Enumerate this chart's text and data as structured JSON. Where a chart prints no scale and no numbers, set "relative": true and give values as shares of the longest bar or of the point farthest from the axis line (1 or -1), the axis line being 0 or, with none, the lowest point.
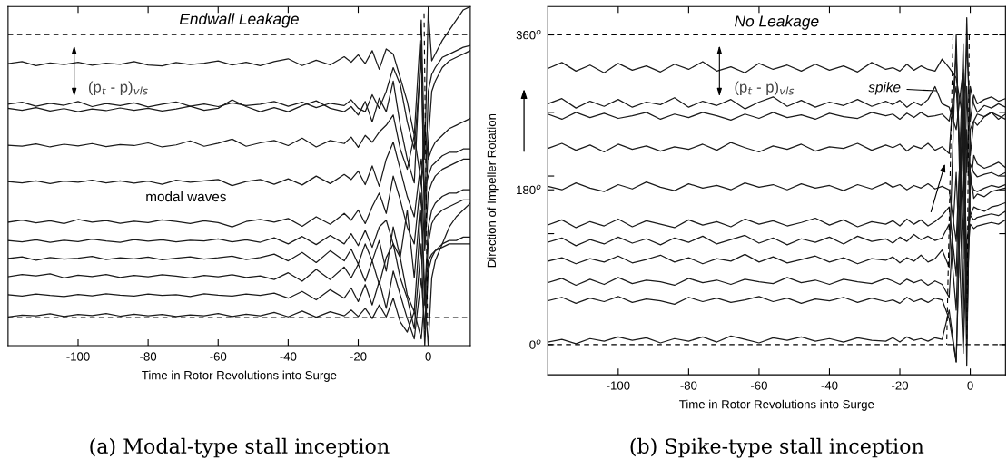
{
  "chart_data": [
    {
      "type": "line",
      "title": "Endwall Leakage",
      "xlabel": "Time in Rotor Revolutions into Surge",
      "relative": true,
      "tick_labels": "x",
      "line_style": "solid",
      "x": [
        -120,
        -116,
        -112,
        -108,
        -104,
        -100,
        -96,
        -92,
        -88,
        -84,
        -80,
        -76,
        -72,
        -68,
        -64,
        -60,
        -56,
        -52,
        -48,
        -44,
        -40,
        -36,
        -32,
        -28,
        -24,
        -22,
        -20,
        -18,
        -16,
        -14,
        -12,
        -10,
        -8,
        -6,
        -4,
        -2,
        -1,
        0,
        1,
        2,
        4,
        6,
        8,
        10,
        12
      ],
      "xlim": [
        -120,
        12
      ],
      "xticks": [
        -100,
        -80,
        -60,
        -40,
        -20,
        0
      ],
      "ref_lines": [
        {
          "axis": "y",
          "value": 0.917,
          "color": "#000000",
          "line_style": "dashed"
        },
        {
          "axis": "y",
          "value": 0.083,
          "color": "#000000",
          "line_style": "dashed"
        }
      ],
      "annotations": [
        "(p$_{t}$ - p)$_{vls}$",
        "modal waves",
        "(a) Modal-type stall inception"
      ],
      "series": [
        {
          "color": "#1a1a1a",
          "values": [
            0.832,
            0.838,
            0.826,
            0.834,
            0.829,
            0.836,
            0.827,
            0.833,
            0.83,
            0.838,
            0.828,
            0.825,
            0.835,
            0.829,
            0.833,
            0.84,
            0.828,
            0.836,
            0.826,
            0.838,
            0.846,
            0.826,
            0.842,
            0.828,
            0.852,
            0.836,
            0.858,
            0.832,
            0.87,
            0.815,
            0.875,
            0.86,
            0.79,
            0.72,
            0.62,
            0.96,
            0.55,
            0.99,
            0.84,
            0.86,
            0.9,
            0.93,
            0.96,
            0.99,
            1.0
          ]
        },
        {
          "color": "#1a1a1a",
          "values": [
            0.712,
            0.718,
            0.706,
            0.715,
            0.709,
            0.72,
            0.705,
            0.714,
            0.708,
            0.716,
            0.704,
            0.712,
            0.719,
            0.706,
            0.713,
            0.705,
            0.716,
            0.708,
            0.712,
            0.72,
            0.706,
            0.718,
            0.702,
            0.715,
            0.708,
            0.725,
            0.7,
            0.69,
            0.74,
            0.7,
            0.75,
            0.82,
            0.77,
            0.66,
            0.58,
            0.85,
            0.4,
            0.75,
            0.8,
            0.82,
            0.85,
            0.86,
            0.87,
            0.88,
            0.885
          ]
        },
        {
          "color": "#1a1a1a",
          "values": [
            0.7,
            0.694,
            0.702,
            0.692,
            0.699,
            0.69,
            0.698,
            0.693,
            0.701,
            0.694,
            0.7,
            0.692,
            0.698,
            0.706,
            0.694,
            0.7,
            0.725,
            0.705,
            0.69,
            0.702,
            0.69,
            0.708,
            0.722,
            0.7,
            0.69,
            0.705,
            0.68,
            0.72,
            0.66,
            0.73,
            0.69,
            0.78,
            0.65,
            0.55,
            0.48,
            0.9,
            0.3,
            0.6,
            0.75,
            0.78,
            0.82,
            0.84,
            0.85,
            0.86,
            0.87
          ]
        },
        {
          "color": "#1a1a1a",
          "values": [
            0.591,
            0.588,
            0.595,
            0.586,
            0.594,
            0.589,
            0.596,
            0.587,
            0.593,
            0.59,
            0.598,
            0.586,
            0.592,
            0.604,
            0.588,
            0.597,
            0.609,
            0.588,
            0.598,
            0.605,
            0.59,
            0.612,
            0.586,
            0.605,
            0.596,
            0.615,
            0.585,
            0.62,
            0.6,
            0.63,
            0.65,
            0.68,
            0.58,
            0.52,
            0.62,
            0.48,
            0.65,
            0.55,
            0.58,
            0.6,
            0.62,
            0.64,
            0.65,
            0.66,
            0.67
          ]
        },
        {
          "color": "#1a1a1a",
          "values": [
            0.484,
            0.48,
            0.486,
            0.478,
            0.485,
            0.482,
            0.488,
            0.48,
            0.486,
            0.479,
            0.485,
            0.476,
            0.488,
            0.482,
            0.486,
            0.49,
            0.472,
            0.484,
            0.49,
            0.476,
            0.492,
            0.474,
            0.5,
            0.478,
            0.505,
            0.49,
            0.515,
            0.475,
            0.53,
            0.47,
            0.55,
            0.6,
            0.52,
            0.44,
            0.38,
            0.55,
            0.46,
            0.5,
            0.53,
            0.54,
            0.56,
            0.57,
            0.57,
            0.58,
            0.58
          ]
        },
        {
          "color": "#1a1a1a",
          "values": [
            0.364,
            0.37,
            0.362,
            0.368,
            0.36,
            0.372,
            0.364,
            0.369,
            0.361,
            0.367,
            0.363,
            0.371,
            0.366,
            0.36,
            0.368,
            0.363,
            0.35,
            0.366,
            0.372,
            0.364,
            0.375,
            0.352,
            0.38,
            0.358,
            0.39,
            0.37,
            0.4,
            0.36,
            0.41,
            0.45,
            0.39,
            0.5,
            0.43,
            0.35,
            0.3,
            0.5,
            0.28,
            0.45,
            0.48,
            0.5,
            0.52,
            0.53,
            0.54,
            0.55,
            0.55
          ]
        },
        {
          "color": "#1a1a1a",
          "values": [
            0.31,
            0.306,
            0.312,
            0.305,
            0.311,
            0.307,
            0.314,
            0.309,
            0.305,
            0.313,
            0.308,
            0.312,
            0.306,
            0.311,
            0.309,
            0.315,
            0.306,
            0.312,
            0.305,
            0.318,
            0.3,
            0.322,
            0.298,
            0.325,
            0.3,
            0.33,
            0.295,
            0.34,
            0.29,
            0.35,
            0.37,
            0.3,
            0.26,
            0.4,
            0.2,
            0.45,
            0.15,
            0.35,
            0.4,
            0.42,
            0.44,
            0.45,
            0.45,
            0.46,
            0.46
          ]
        },
        {
          "color": "#1a1a1a",
          "values": [
            0.257,
            0.262,
            0.252,
            0.26,
            0.255,
            0.258,
            0.263,
            0.254,
            0.259,
            0.256,
            0.261,
            0.253,
            0.258,
            0.262,
            0.255,
            0.259,
            0.264,
            0.254,
            0.26,
            0.27,
            0.25,
            0.275,
            0.245,
            0.28,
            0.25,
            0.285,
            0.24,
            0.3,
            0.25,
            0.31,
            0.22,
            0.35,
            0.26,
            0.15,
            0.1,
            0.4,
            0.12,
            0.3,
            0.36,
            0.38,
            0.4,
            0.41,
            0.42,
            0.43,
            0.43
          ]
        },
        {
          "color": "#1a1a1a",
          "values": [
            0.203,
            0.21,
            0.206,
            0.212,
            0.2,
            0.208,
            0.204,
            0.21,
            0.201,
            0.207,
            0.203,
            0.209,
            0.205,
            0.2,
            0.207,
            0.203,
            0.209,
            0.201,
            0.206,
            0.195,
            0.215,
            0.19,
            0.225,
            0.195,
            0.232,
            0.2,
            0.24,
            0.19,
            0.25,
            0.18,
            0.26,
            0.3,
            0.2,
            0.14,
            0.05,
            0.3,
            0.0,
            0.22,
            0.26,
            0.28,
            0.3,
            0.31,
            0.31,
            0.32,
            0.32
          ]
        },
        {
          "color": "#1a1a1a",
          "values": [
            0.15,
            0.146,
            0.152,
            0.148,
            0.145,
            0.151,
            0.147,
            0.153,
            0.149,
            0.146,
            0.152,
            0.148,
            0.15,
            0.145,
            0.153,
            0.149,
            0.146,
            0.152,
            0.148,
            0.155,
            0.14,
            0.16,
            0.135,
            0.165,
            0.14,
            0.17,
            0.13,
            0.18,
            0.12,
            0.19,
            0.11,
            0.22,
            0.15,
            0.08,
            0.02,
            0.2,
            0.05,
            0.25,
            0.27,
            0.28,
            0.29,
            0.3,
            0.3,
            0.3,
            0.3
          ]
        },
        {
          "color": "#1a1a1a",
          "values": [
            0.085,
            0.09,
            0.088,
            0.094,
            0.086,
            0.092,
            0.089,
            0.095,
            0.087,
            0.093,
            0.088,
            0.092,
            0.086,
            0.091,
            0.088,
            0.095,
            0.086,
            0.093,
            0.088,
            0.098,
            0.085,
            0.102,
            0.084,
            0.1,
            0.088,
            0.105,
            0.086,
            0.11,
            0.08,
            0.12,
            0.085,
            0.14,
            0.07,
            0.04,
            0.1,
            0.02,
            0.15,
            0.0,
            0.2,
            0.25,
            0.3,
            0.35,
            0.38,
            0.4,
            0.42
          ]
        },
        {
          "color": "#000000",
          "line_style": "dashed",
          "x": [
            -1.2,
            -0.2
          ],
          "values": [
            0.98,
            0.06
          ]
        }
      ]
    },
    {
      "type": "line",
      "title": "No Leakage",
      "xlabel": "Time in Rotor Revolutions into Surge",
      "ylabel": "Direction of Impeller Rotation",
      "line_style": "solid",
      "x": [
        -120,
        -116,
        -112,
        -108,
        -104,
        -100,
        -96,
        -92,
        -88,
        -84,
        -80,
        -76,
        -72,
        -68,
        -64,
        -60,
        -56,
        -52,
        -48,
        -44,
        -40,
        -36,
        -32,
        -28,
        -24,
        -22,
        -20,
        -18,
        -16,
        -14,
        -12,
        -10,
        -8,
        -6,
        -4,
        -2,
        -1,
        0,
        1,
        2,
        4,
        6,
        8,
        10
      ],
      "xlim": [
        -120,
        10
      ],
      "xticks": [
        -100,
        -80,
        -60,
        -40,
        -20,
        0
      ],
      "ylim": [
        -35,
        393
      ],
      "yticks": [
        {
          "value": 0,
          "label": "0$^{o}$"
        },
        {
          "value": 129,
          "label": null
        },
        {
          "value": 180,
          "label": "180$^{o}$"
        },
        {
          "value": 196,
          "label": null
        },
        {
          "value": 270,
          "label": null
        },
        {
          "value": 360,
          "label": "360$^{o}$"
        }
      ],
      "ref_lines": [
        {
          "axis": "y",
          "value": 360,
          "color": "#000000",
          "line_style": "dashed"
        },
        {
          "axis": "y",
          "value": 0,
          "color": "#000000",
          "line_style": "dashed"
        }
      ],
      "annotations": [
        "(p$_{t}$ - p)$_{vls}$",
        {
          "text": "spike",
          "x": -9,
          "y": 295
        },
        "(b) Spike-type stall inception"
      ],
      "series": [
        {
          "color": "#1a1a1a",
          "values": [
            321,
            328,
            318,
            325,
            316,
            327,
            319,
            324,
            317,
            326,
            320,
            329,
            318,
            323,
            316,
            327,
            320,
            325,
            318,
            326,
            319,
            324,
            317,
            328,
            320,
            322,
            318,
            326,
            319,
            324,
            320,
            318,
            332,
            322,
            310,
            260,
            350,
            260,
            290,
            280,
            285,
            288,
            283,
            286
          ]
        },
        {
          "color": "#1a1a1a",
          "values": [
            280,
            286,
            275,
            283,
            277,
            285,
            276,
            282,
            279,
            287,
            276,
            283,
            278,
            285,
            274,
            282,
            288,
            277,
            284,
            276,
            282,
            278,
            285,
            277,
            283,
            279,
            284,
            276,
            282,
            278,
            285,
            300,
            280,
            276,
            250,
            320,
            200,
            300,
            280,
            270,
            278,
            275,
            280,
            276
          ]
        },
        {
          "color": "#1a1a1a",
          "values": [
            268,
            262,
            270,
            264,
            269,
            263,
            266,
            270,
            262,
            268,
            264,
            270,
            266,
            261,
            268,
            263,
            270,
            264,
            267,
            262,
            269,
            265,
            263,
            270,
            266,
            268,
            262,
            269,
            264,
            270,
            265,
            266,
            268,
            260,
            300,
            150,
            380,
            220,
            260,
            268,
            265,
            270,
            266,
            262
          ]
        },
        {
          "color": "#1a1a1a",
          "values": [
            228,
            234,
            226,
            232,
            224,
            233,
            227,
            231,
            225,
            230,
            227,
            233,
            226,
            235,
            229,
            224,
            231,
            227,
            233,
            225,
            230,
            228,
            234,
            226,
            232,
            229,
            233,
            225,
            231,
            228,
            234,
            226,
            230,
            222,
            340,
            100,
            300,
            180,
            220,
            210,
            205,
            208,
            212,
            206
          ]
        },
        {
          "color": "#1a1a1a",
          "values": [
            184,
            180,
            188,
            182,
            178,
            186,
            181,
            189,
            183,
            179,
            187,
            182,
            185,
            180,
            188,
            183,
            186,
            180,
            187,
            182,
            185,
            179,
            186,
            181,
            188,
            183,
            186,
            180,
            185,
            182,
            187,
            181,
            184,
            180,
            120,
            300,
            60,
            210,
            200,
            195,
            198,
            200,
            196,
            200
          ]
        },
        {
          "color": "#1a1a1a",
          "values": [
            139,
            145,
            136,
            143,
            138,
            146,
            137,
            144,
            140,
            136,
            145,
            139,
            143,
            137,
            146,
            140,
            144,
            138,
            142,
            147,
            139,
            145,
            137,
            143,
            140,
            144,
            138,
            146,
            140,
            145,
            138,
            143,
            150,
            160,
            80,
            350,
            20,
            190,
            180,
            178,
            182,
            185,
            183,
            186
          ]
        },
        {
          "color": "#1a1a1a",
          "values": [
            119,
            124,
            115,
            122,
            117,
            125,
            118,
            123,
            116,
            124,
            119,
            126,
            117,
            122,
            127,
            118,
            124,
            116,
            123,
            119,
            125,
            117,
            126,
            120,
            123,
            118,
            125,
            120,
            128,
            122,
            126,
            121,
            124,
            140,
            40,
            300,
            0,
            200,
            170,
            175,
            172,
            178,
            180,
            182
          ]
        },
        {
          "color": "#1a1a1a",
          "values": [
            97,
            101,
            94,
            100,
            96,
            103,
            95,
            99,
            104,
            96,
            101,
            94,
            100,
            97,
            105,
            96,
            102,
            95,
            99,
            103,
            96,
            101,
            94,
            100,
            98,
            102,
            95,
            101,
            97,
            104,
            96,
            100,
            110,
            90,
            360,
            20,
            250,
            150,
            160,
            158,
            155,
            160,
            162,
            165
          ]
        },
        {
          "color": "#1a1a1a",
          "values": [
            72,
            77,
            69,
            76,
            70,
            78,
            71,
            75,
            73,
            69,
            77,
            72,
            75,
            70,
            76,
            73,
            71,
            78,
            72,
            75,
            70,
            76,
            73,
            71,
            77,
            74,
            70,
            76,
            72,
            75,
            69,
            74,
            70,
            55,
            200,
            -10,
            120,
            150,
            145,
            148,
            150,
            152,
            150,
            155
          ]
        },
        {
          "color": "#1a1a1a",
          "values": [
            51,
            55,
            48,
            54,
            50,
            56,
            49,
            53,
            51,
            47,
            55,
            50,
            54,
            49,
            52,
            56,
            50,
            54,
            48,
            53,
            51,
            55,
            49,
            54,
            50,
            52,
            48,
            55,
            50,
            53,
            49,
            54,
            52,
            30,
            -20,
            280,
            90,
            140,
            135,
            138,
            140,
            142,
            140,
            145
          ]
        },
        {
          "color": "#1a1a1a",
          "values": [
            3,
            6,
            1,
            7,
            4,
            9,
            5,
            8,
            2,
            7,
            4,
            9,
            3,
            10,
            6,
            2,
            8,
            5,
            9,
            4,
            7,
            3,
            8,
            5,
            4,
            8,
            3,
            9,
            5,
            7,
            4,
            8,
            6,
            40,
            -20,
            300,
            -25,
            250,
            260,
            255,
            265,
            270,
            262,
            268
          ]
        },
        {
          "color": "#000000",
          "line_style": "dashed",
          "x": [
            -4.9,
            -6.7
          ],
          "values": [
            360,
            0
          ]
        },
        {
          "color": "#000000",
          "line_style": "dashed",
          "x": [
            -0.3,
            -1.0
          ],
          "values": [
            360,
            0
          ]
        }
      ]
    }
  ]
}
